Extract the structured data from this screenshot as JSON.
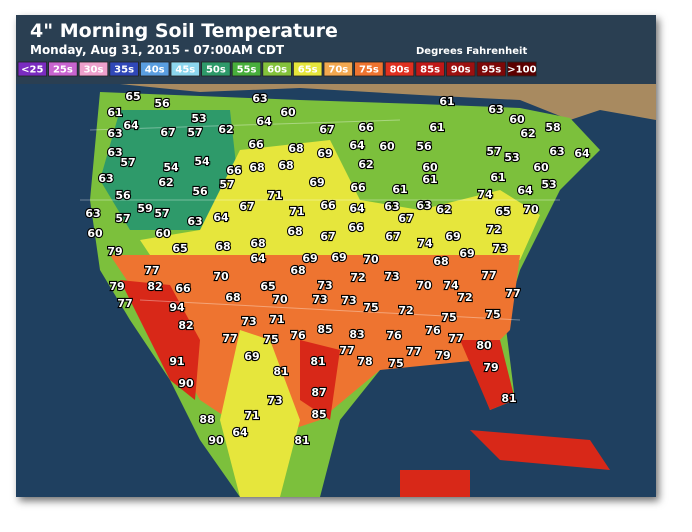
{
  "header": {
    "title": "4\" Morning Soil Temperature",
    "subtitle": "Monday, Aug 31, 2015 - 07:00AM CDT",
    "units": "Degrees Fahrenheit"
  },
  "legend": [
    {
      "label": "<25",
      "color": "#7a2cc0"
    },
    {
      "label": "25s",
      "color": "#c864d0"
    },
    {
      "label": "30s",
      "color": "#eea0cc"
    },
    {
      "label": "35s",
      "color": "#3048b8"
    },
    {
      "label": "40s",
      "color": "#5a9ee0"
    },
    {
      "label": "45s",
      "color": "#8cd6ee"
    },
    {
      "label": "50s",
      "color": "#2e9a6a"
    },
    {
      "label": "55s",
      "color": "#48ae3c"
    },
    {
      "label": "60s",
      "color": "#84c23c"
    },
    {
      "label": "65s",
      "color": "#e6e63c"
    },
    {
      "label": "70s",
      "color": "#f2a850"
    },
    {
      "label": "75s",
      "color": "#ee7430"
    },
    {
      "label": "80s",
      "color": "#e03020"
    },
    {
      "label": "85s",
      "color": "#c01818"
    },
    {
      "label": "90s",
      "color": "#9c1010"
    },
    {
      "label": "95s",
      "color": "#7c0808"
    },
    {
      "label": ">100",
      "color": "#5c0000"
    }
  ],
  "stations": [
    65,
    56,
    63,
    60,
    61,
    63,
    60,
    61,
    64,
    67,
    57,
    53,
    62,
    64,
    67,
    66,
    61,
    62,
    58,
    63,
    66,
    68,
    69,
    64,
    60,
    56,
    57,
    53,
    63,
    64,
    63,
    57,
    54,
    54,
    66,
    68,
    68,
    62,
    60,
    60,
    63,
    62,
    56,
    57,
    69,
    66,
    61,
    61,
    61,
    53,
    56,
    71,
    64,
    74,
    63,
    57,
    59,
    57,
    63,
    64,
    67,
    71,
    66,
    64,
    63,
    67,
    63,
    62,
    65,
    70,
    60,
    60,
    65,
    68,
    68,
    68,
    67,
    66,
    67,
    74,
    69,
    69,
    72,
    73,
    79,
    64,
    69,
    69,
    70,
    68,
    77,
    77,
    70,
    68,
    72,
    73,
    70,
    74,
    72,
    79,
    82,
    66,
    68,
    65,
    73,
    77,
    77,
    94,
    70,
    73,
    73,
    75,
    72,
    75,
    75,
    82,
    73,
    71,
    75,
    76,
    85,
    83,
    76,
    76,
    77,
    77,
    77,
    78,
    75,
    77,
    79,
    80,
    91,
    69,
    81,
    81,
    79,
    90,
    87,
    81,
    73,
    85,
    88,
    71,
    90,
    64,
    81
  ]
}
